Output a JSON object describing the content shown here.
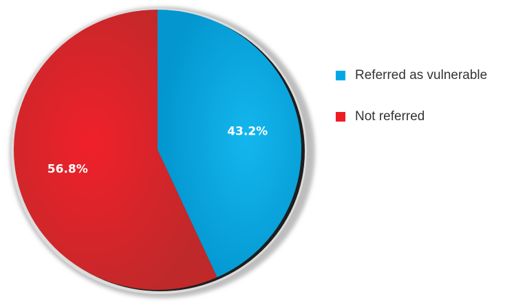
{
  "chart_data": {
    "type": "pie",
    "slices": [
      {
        "label": "Referred as vulnerable",
        "value": 43.2,
        "display": "43.2%",
        "color": "#00a9e6"
      },
      {
        "label": "Not referred",
        "value": 56.8,
        "display": "56.8%",
        "color": "#ee1c24"
      }
    ],
    "legend": {
      "position": "right",
      "items": [
        "Referred as vulnerable",
        "Not referred"
      ]
    },
    "start_angle": "12 o'clock",
    "direction": "clockwise"
  }
}
